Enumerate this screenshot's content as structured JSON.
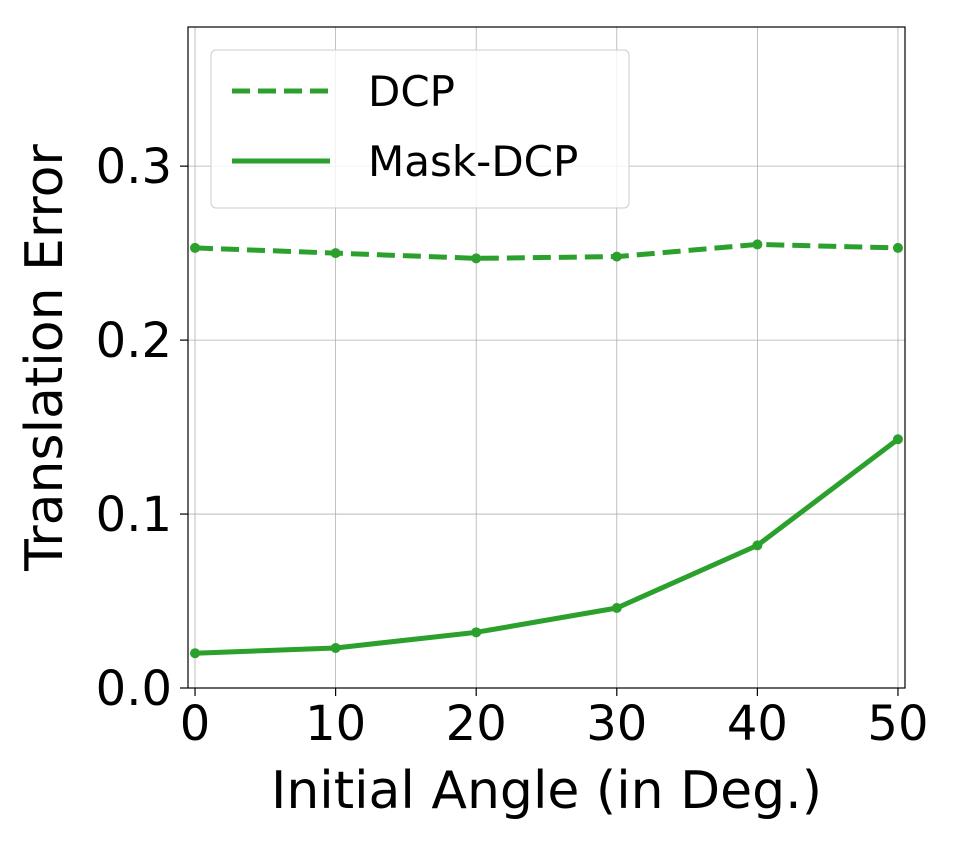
{
  "chart_data": {
    "type": "line",
    "title": "",
    "xlabel": "Initial Angle (in Deg.)",
    "ylabel": "Translation Error",
    "x": [
      0,
      10,
      20,
      30,
      40,
      50
    ],
    "xlim": [
      -0.5,
      50.5
    ],
    "ylim": [
      0,
      0.38
    ],
    "xticks": [
      0,
      10,
      20,
      30,
      40,
      50
    ],
    "xtick_labels": [
      "0",
      "10",
      "20",
      "30",
      "40",
      "50"
    ],
    "yticks": [
      0.0,
      0.1,
      0.2,
      0.3
    ],
    "ytick_labels": [
      "0.0",
      "0.1",
      "0.2",
      "0.3"
    ],
    "grid": true,
    "legend_position": "top-left",
    "series": [
      {
        "name": "DCP",
        "style": "dashed",
        "color": "#2ca02c",
        "values": [
          0.253,
          0.25,
          0.247,
          0.248,
          0.255,
          0.253
        ]
      },
      {
        "name": "Mask-DCP",
        "style": "solid",
        "color": "#2ca02c",
        "values": [
          0.02,
          0.023,
          0.032,
          0.046,
          0.082,
          0.143
        ]
      }
    ]
  }
}
